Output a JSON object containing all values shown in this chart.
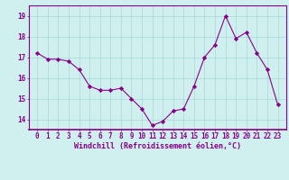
{
  "x": [
    0,
    1,
    2,
    3,
    4,
    5,
    6,
    7,
    8,
    9,
    10,
    11,
    12,
    13,
    14,
    15,
    16,
    17,
    18,
    19,
    20,
    21,
    22,
    23
  ],
  "y": [
    17.2,
    16.9,
    16.9,
    16.8,
    16.4,
    15.6,
    15.4,
    15.4,
    15.5,
    15.0,
    14.5,
    13.7,
    13.9,
    14.4,
    14.5,
    15.6,
    17.0,
    17.6,
    19.0,
    17.9,
    18.2,
    17.2,
    16.4,
    14.7
  ],
  "line_color": "#880088",
  "marker": "D",
  "marker_size": 2.2,
  "bg_color": "#d0f0f0",
  "grid_color": "#a8d8d8",
  "ylim": [
    13.5,
    19.5
  ],
  "yticks": [
    14,
    15,
    16,
    17,
    18,
    19
  ],
  "xlabel": "Windchill (Refroidissement éolien,°C)",
  "xlabel_fontsize": 6.0,
  "tick_fontsize": 5.5
}
